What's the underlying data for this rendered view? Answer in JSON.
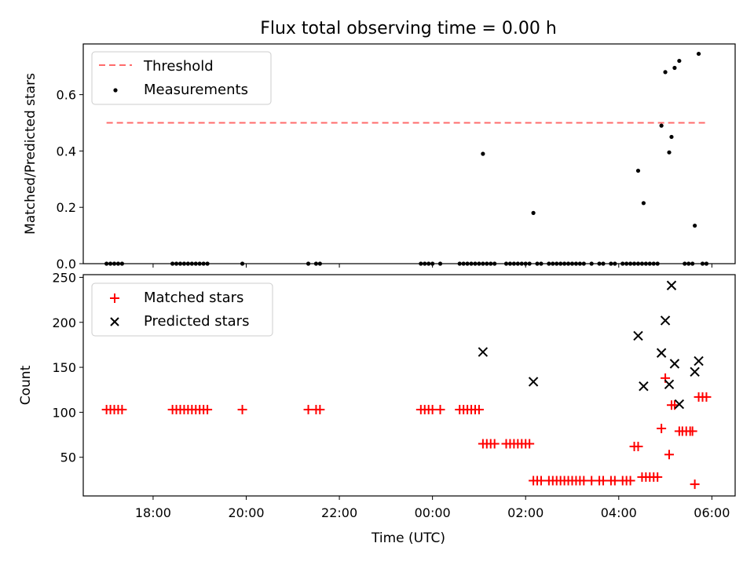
{
  "chart_data": [
    {
      "type": "scatter",
      "title": "Flux total observing time = 0.00 h",
      "xlabel": "",
      "ylabel": "Matched/Predicted stars",
      "xlim": [
        "16:30",
        "06:30"
      ],
      "ylim": [
        0,
        0.78
      ],
      "y_ticks": [
        "0.0",
        "0.2",
        "0.4",
        "0.6"
      ],
      "x_tick_labels_shown": false,
      "legend_placement": "top-left",
      "threshold_line": {
        "name": "Threshold",
        "y": 0.5,
        "x_range": [
          "17:00",
          "05:55"
        ],
        "color": "#ff6b6b",
        "style": "dashed"
      },
      "series": [
        {
          "name": "Measurements",
          "color": "#000000",
          "marker": "dot",
          "points": [
            [
              "17:00",
              0
            ],
            [
              "17:05",
              0
            ],
            [
              "17:10",
              0
            ],
            [
              "17:15",
              0
            ],
            [
              "17:20",
              0
            ],
            [
              "18:25",
              0
            ],
            [
              "18:30",
              0
            ],
            [
              "18:35",
              0
            ],
            [
              "18:40",
              0
            ],
            [
              "18:45",
              0
            ],
            [
              "18:50",
              0
            ],
            [
              "18:55",
              0
            ],
            [
              "19:00",
              0
            ],
            [
              "19:05",
              0
            ],
            [
              "19:10",
              0
            ],
            [
              "19:55",
              0
            ],
            [
              "21:20",
              0
            ],
            [
              "21:30",
              0
            ],
            [
              "21:35",
              0
            ],
            [
              "23:45",
              0
            ],
            [
              "23:50",
              0
            ],
            [
              "23:55",
              0
            ],
            [
              "00:00",
              0
            ],
            [
              "00:10",
              0
            ],
            [
              "00:35",
              0
            ],
            [
              "00:40",
              0
            ],
            [
              "00:45",
              0
            ],
            [
              "00:50",
              0
            ],
            [
              "00:55",
              0
            ],
            [
              "01:00",
              0
            ],
            [
              "01:05",
              0.39
            ],
            [
              "01:05",
              0
            ],
            [
              "01:10",
              0
            ],
            [
              "01:15",
              0
            ],
            [
              "01:20",
              0
            ],
            [
              "01:35",
              0
            ],
            [
              "01:40",
              0
            ],
            [
              "01:45",
              0
            ],
            [
              "01:50",
              0
            ],
            [
              "01:55",
              0
            ],
            [
              "02:00",
              0
            ],
            [
              "02:05",
              0
            ],
            [
              "02:10",
              0.18
            ],
            [
              "02:15",
              0
            ],
            [
              "02:20",
              0
            ],
            [
              "02:30",
              0
            ],
            [
              "02:35",
              0
            ],
            [
              "02:40",
              0
            ],
            [
              "02:45",
              0
            ],
            [
              "02:50",
              0
            ],
            [
              "02:55",
              0
            ],
            [
              "03:00",
              0
            ],
            [
              "03:05",
              0
            ],
            [
              "03:10",
              0
            ],
            [
              "03:15",
              0
            ],
            [
              "03:25",
              0
            ],
            [
              "03:35",
              0
            ],
            [
              "03:40",
              0
            ],
            [
              "03:50",
              0
            ],
            [
              "03:55",
              0
            ],
            [
              "04:05",
              0
            ],
            [
              "04:10",
              0
            ],
            [
              "04:15",
              0
            ],
            [
              "04:20",
              0
            ],
            [
              "04:25",
              0
            ],
            [
              "04:25",
              0.33
            ],
            [
              "04:30",
              0
            ],
            [
              "04:35",
              0
            ],
            [
              "04:32",
              0.215
            ],
            [
              "04:40",
              0
            ],
            [
              "04:45",
              0
            ],
            [
              "04:50",
              0
            ],
            [
              "04:55",
              0.49
            ],
            [
              "05:00",
              0.68
            ],
            [
              "05:05",
              0.395
            ],
            [
              "05:08",
              0.45
            ],
            [
              "05:12",
              0.695
            ],
            [
              "05:18",
              0.72
            ],
            [
              "05:25",
              0
            ],
            [
              "05:30",
              0
            ],
            [
              "05:35",
              0
            ],
            [
              "05:38",
              0.135
            ],
            [
              "05:43",
              0.745
            ],
            [
              "05:48",
              0
            ],
            [
              "05:53",
              0
            ]
          ]
        }
      ]
    },
    {
      "type": "scatter",
      "title": "",
      "xlabel": "Time (UTC)",
      "ylabel": "Count",
      "xlim": [
        "16:30",
        "06:30"
      ],
      "ylim": [
        7,
        253
      ],
      "y_ticks": [
        "50",
        "100",
        "150",
        "200",
        "250"
      ],
      "x_ticks": [
        "18:00",
        "20:00",
        "22:00",
        "00:00",
        "02:00",
        "04:00",
        "06:00"
      ],
      "legend_placement": "top-left",
      "series": [
        {
          "name": "Matched stars",
          "color": "#ff0000",
          "marker": "plus",
          "points": [
            [
              "17:00",
              103
            ],
            [
              "17:05",
              103
            ],
            [
              "17:10",
              103
            ],
            [
              "17:15",
              103
            ],
            [
              "17:20",
              103
            ],
            [
              "18:25",
              103
            ],
            [
              "18:30",
              103
            ],
            [
              "18:35",
              103
            ],
            [
              "18:40",
              103
            ],
            [
              "18:45",
              103
            ],
            [
              "18:50",
              103
            ],
            [
              "18:55",
              103
            ],
            [
              "19:00",
              103
            ],
            [
              "19:05",
              103
            ],
            [
              "19:10",
              103
            ],
            [
              "19:55",
              103
            ],
            [
              "21:20",
              103
            ],
            [
              "21:30",
              103
            ],
            [
              "21:35",
              103
            ],
            [
              "23:45",
              103
            ],
            [
              "23:50",
              103
            ],
            [
              "23:55",
              103
            ],
            [
              "00:00",
              103
            ],
            [
              "00:10",
              103
            ],
            [
              "00:35",
              103
            ],
            [
              "00:40",
              103
            ],
            [
              "00:45",
              103
            ],
            [
              "00:50",
              103
            ],
            [
              "00:55",
              103
            ],
            [
              "01:00",
              103
            ],
            [
              "01:05",
              65
            ],
            [
              "01:10",
              65
            ],
            [
              "01:15",
              65
            ],
            [
              "01:20",
              65
            ],
            [
              "01:35",
              65
            ],
            [
              "01:40",
              65
            ],
            [
              "01:45",
              65
            ],
            [
              "01:50",
              65
            ],
            [
              "01:55",
              65
            ],
            [
              "02:00",
              65
            ],
            [
              "02:05",
              65
            ],
            [
              "02:10",
              24
            ],
            [
              "02:15",
              24
            ],
            [
              "02:20",
              24
            ],
            [
              "02:30",
              24
            ],
            [
              "02:35",
              24
            ],
            [
              "02:40",
              24
            ],
            [
              "02:45",
              24
            ],
            [
              "02:50",
              24
            ],
            [
              "02:55",
              24
            ],
            [
              "03:00",
              24
            ],
            [
              "03:05",
              24
            ],
            [
              "03:10",
              24
            ],
            [
              "03:15",
              24
            ],
            [
              "03:25",
              24
            ],
            [
              "03:35",
              24
            ],
            [
              "03:40",
              24
            ],
            [
              "03:50",
              24
            ],
            [
              "03:55",
              24
            ],
            [
              "04:05",
              24
            ],
            [
              "04:10",
              24
            ],
            [
              "04:15",
              24
            ],
            [
              "04:20",
              62
            ],
            [
              "04:25",
              62
            ],
            [
              "04:30",
              28
            ],
            [
              "04:35",
              28
            ],
            [
              "04:40",
              28
            ],
            [
              "04:45",
              28
            ],
            [
              "04:50",
              28
            ],
            [
              "04:55",
              82
            ],
            [
              "05:00",
              138
            ],
            [
              "05:05",
              53
            ],
            [
              "05:08",
              108
            ],
            [
              "05:12",
              108
            ],
            [
              "05:18",
              79
            ],
            [
              "05:22",
              79
            ],
            [
              "05:27",
              79
            ],
            [
              "05:32",
              79
            ],
            [
              "05:35",
              79
            ],
            [
              "05:38",
              20
            ],
            [
              "05:43",
              117
            ],
            [
              "05:48",
              117
            ],
            [
              "05:53",
              117
            ]
          ]
        },
        {
          "name": "Predicted stars",
          "color": "#000000",
          "marker": "x",
          "points": [
            [
              "01:05",
              167
            ],
            [
              "02:10",
              134
            ],
            [
              "04:25",
              185
            ],
            [
              "04:32",
              129
            ],
            [
              "04:55",
              166
            ],
            [
              "05:00",
              202
            ],
            [
              "05:05",
              131
            ],
            [
              "05:08",
              241
            ],
            [
              "05:12",
              154
            ],
            [
              "05:18",
              109
            ],
            [
              "05:38",
              145
            ],
            [
              "05:43",
              157
            ]
          ]
        }
      ]
    }
  ]
}
